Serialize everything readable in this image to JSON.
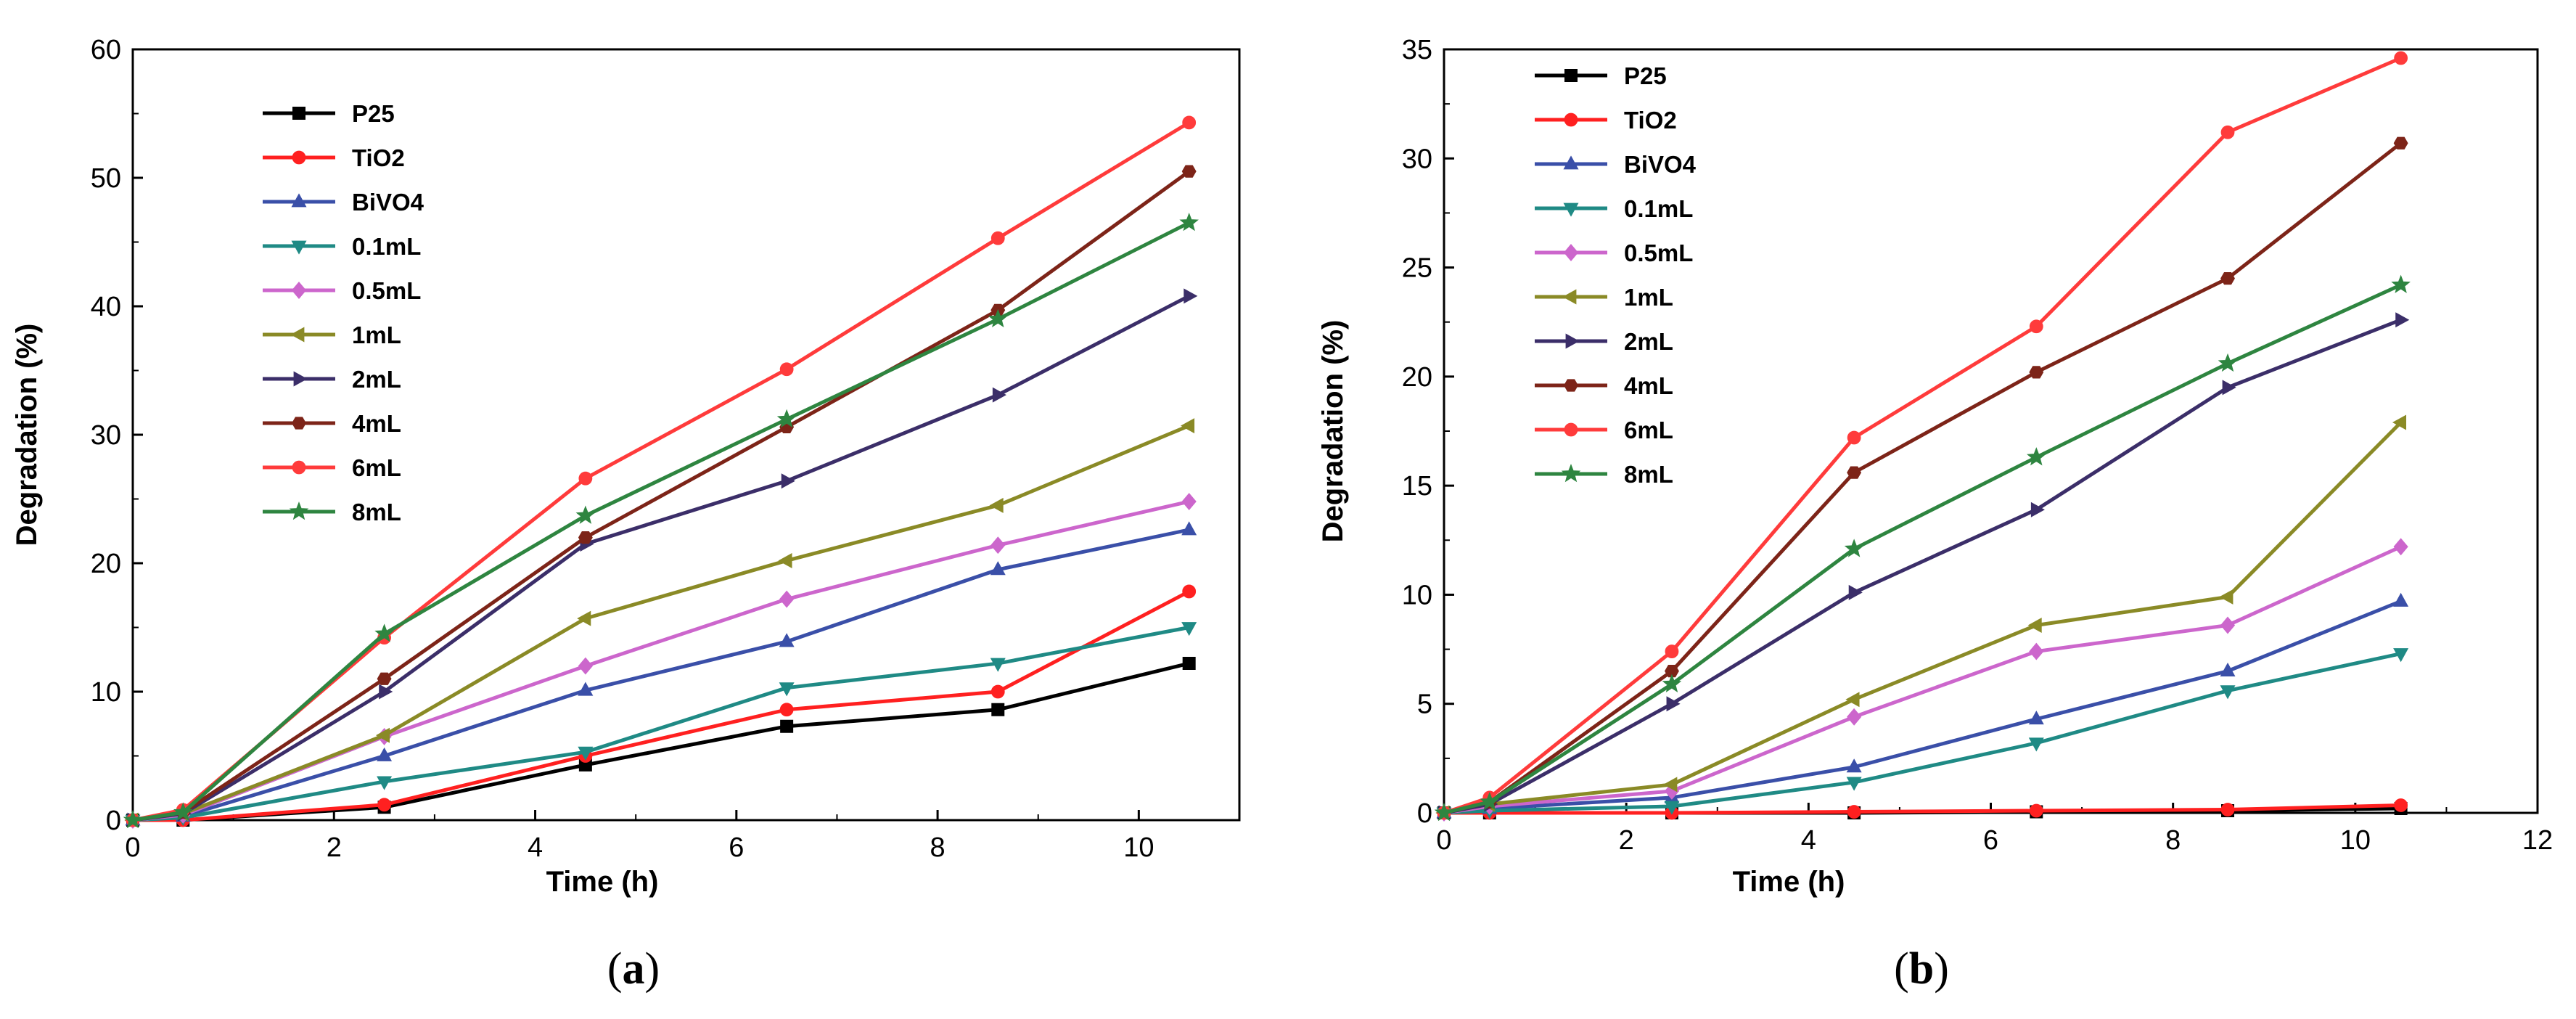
{
  "chart_data": [
    {
      "type": "line",
      "panel": "a",
      "caption": "a",
      "xlabel": "Time (h)",
      "ylabel": "Degradation (%)",
      "xlim": [
        0,
        11
      ],
      "ylim": [
        0,
        60
      ],
      "xticks": [
        "0",
        "2",
        "4",
        "6",
        "8",
        "10"
      ],
      "yticks": [
        "0",
        "10",
        "20",
        "30",
        "40",
        "50",
        "60"
      ],
      "x": [
        0,
        0.5,
        2.5,
        4.5,
        6.5,
        8.6,
        10.5
      ],
      "legend_position": "top-left",
      "series": [
        {
          "name": "P25",
          "color": "#000000",
          "marker": "square",
          "values": [
            0,
            0,
            1.0,
            4.3,
            7.3,
            8.6,
            12.2
          ]
        },
        {
          "name": "TiO2",
          "color": "#ff2020",
          "marker": "circle",
          "values": [
            0,
            0,
            1.2,
            5.0,
            8.6,
            10.0,
            17.8
          ]
        },
        {
          "name": "BiVO4",
          "color": "#3a4fa8",
          "marker": "triangle-up",
          "values": [
            0,
            0.3,
            5.0,
            10.1,
            13.9,
            19.5,
            22.6
          ]
        },
        {
          "name": "0.1mL",
          "color": "#1f8a85",
          "marker": "triangle-down",
          "values": [
            0,
            0.2,
            3.0,
            5.3,
            10.3,
            12.2,
            15.0
          ]
        },
        {
          "name": "0.5mL",
          "color": "#cc66cc",
          "marker": "diamond",
          "values": [
            0,
            0.4,
            6.5,
            12.0,
            17.2,
            21.4,
            24.8
          ]
        },
        {
          "name": "1mL",
          "color": "#8a8a26",
          "marker": "triangle-left",
          "values": [
            0,
            0.5,
            6.6,
            15.7,
            20.2,
            24.5,
            30.7
          ]
        },
        {
          "name": "2mL",
          "color": "#3b2e69",
          "marker": "triangle-right",
          "values": [
            0,
            0.5,
            10.0,
            21.5,
            26.4,
            33.1,
            40.8
          ]
        },
        {
          "name": "4mL",
          "color": "#7d2418",
          "marker": "hexagon",
          "values": [
            0,
            0.6,
            11.0,
            22.0,
            30.6,
            39.7,
            50.5
          ]
        },
        {
          "name": "6mL",
          "color": "#ff3b3b",
          "marker": "circle",
          "values": [
            0,
            0.8,
            14.2,
            26.6,
            35.1,
            45.3,
            54.3
          ]
        },
        {
          "name": "8mL",
          "color": "#2e8540",
          "marker": "star",
          "values": [
            0,
            0.6,
            14.5,
            23.7,
            31.2,
            39.0,
            46.5
          ]
        }
      ]
    },
    {
      "type": "line",
      "panel": "b",
      "caption": "b",
      "xlabel": "Time (h)",
      "ylabel": "Degradation (%)",
      "xlim": [
        0,
        12
      ],
      "ylim": [
        0,
        35
      ],
      "xticks": [
        "0",
        "2",
        "4",
        "6",
        "8",
        "10",
        "12"
      ],
      "yticks": [
        "0",
        "5",
        "10",
        "15",
        "20",
        "25",
        "30",
        "35"
      ],
      "x": [
        0,
        0.5,
        2.5,
        4.5,
        6.5,
        8.6,
        10.5
      ],
      "legend_position": "top-left",
      "series": [
        {
          "name": "P25",
          "color": "#000000",
          "marker": "square",
          "values": [
            0,
            0,
            0,
            0,
            0.05,
            0.1,
            0.2
          ]
        },
        {
          "name": "TiO2",
          "color": "#ff2020",
          "marker": "circle",
          "values": [
            0,
            0,
            0,
            0.05,
            0.1,
            0.15,
            0.35
          ]
        },
        {
          "name": "BiVO4",
          "color": "#3a4fa8",
          "marker": "triangle-up",
          "values": [
            0,
            0.2,
            0.7,
            2.1,
            4.3,
            6.5,
            9.7
          ]
        },
        {
          "name": "0.1mL",
          "color": "#1f8a85",
          "marker": "triangle-down",
          "values": [
            0,
            0.1,
            0.3,
            1.4,
            3.2,
            5.6,
            7.3
          ]
        },
        {
          "name": "0.5mL",
          "color": "#cc66cc",
          "marker": "diamond",
          "values": [
            0,
            0.3,
            1.0,
            4.4,
            7.4,
            8.6,
            12.2
          ]
        },
        {
          "name": "1mL",
          "color": "#8a8a26",
          "marker": "triangle-left",
          "values": [
            0,
            0.4,
            1.3,
            5.2,
            8.6,
            9.9,
            17.9
          ]
        },
        {
          "name": "2mL",
          "color": "#3b2e69",
          "marker": "triangle-right",
          "values": [
            0,
            0.4,
            5.0,
            10.1,
            13.9,
            19.5,
            22.6
          ]
        },
        {
          "name": "4mL",
          "color": "#7d2418",
          "marker": "hexagon",
          "values": [
            0,
            0.5,
            6.5,
            15.6,
            20.2,
            24.5,
            30.7
          ]
        },
        {
          "name": "6mL",
          "color": "#ff3b3b",
          "marker": "circle",
          "values": [
            0,
            0.7,
            7.4,
            17.2,
            22.3,
            31.2,
            34.6
          ]
        },
        {
          "name": "8mL",
          "color": "#2e8540",
          "marker": "star",
          "values": [
            0,
            0.5,
            5.9,
            12.1,
            16.3,
            20.6,
            24.2
          ]
        }
      ]
    }
  ]
}
